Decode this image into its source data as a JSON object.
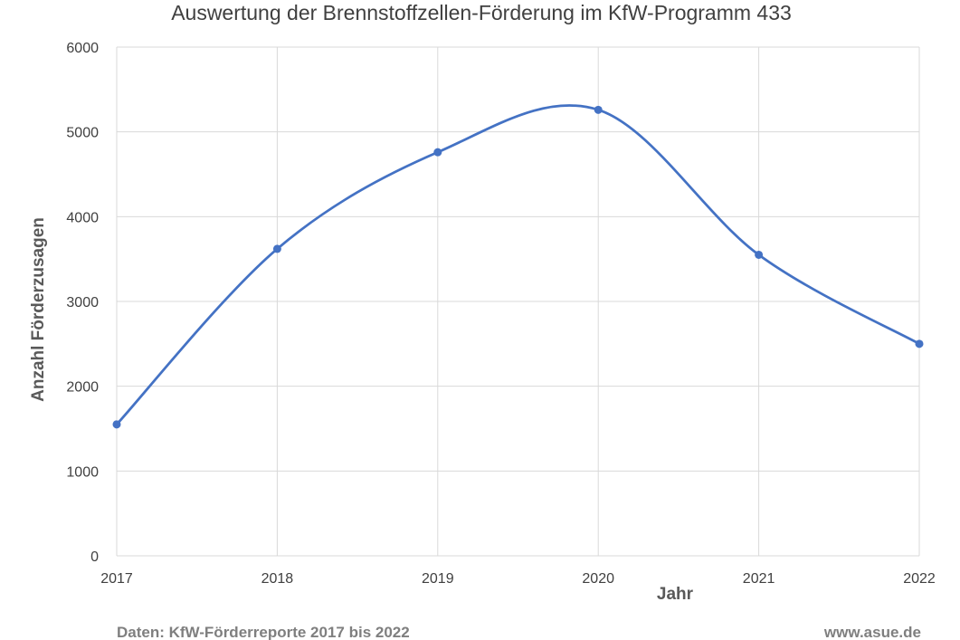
{
  "chart_data": {
    "type": "line",
    "title": "Auswertung der Brennstoffzellen-Förderung im KfW-Programm 433",
    "xlabel": "Jahr",
    "ylabel": "Anzahl Förderzusagen",
    "x": [
      "2017",
      "2018",
      "2019",
      "2020",
      "2021",
      "2022"
    ],
    "series": [
      {
        "values": [
          1550,
          3620,
          4760,
          5260,
          3550,
          2500
        ],
        "color": "#4472c4"
      }
    ],
    "ylim": [
      0,
      6000
    ],
    "yticks": [
      "0",
      "1000",
      "2000",
      "3000",
      "4000",
      "5000",
      "6000"
    ],
    "grid": true,
    "smooth": true,
    "legend": "none"
  },
  "footer": {
    "source": "Daten: KfW-Förderreporte 2017 bis 2022",
    "website": "www.asue.de"
  }
}
